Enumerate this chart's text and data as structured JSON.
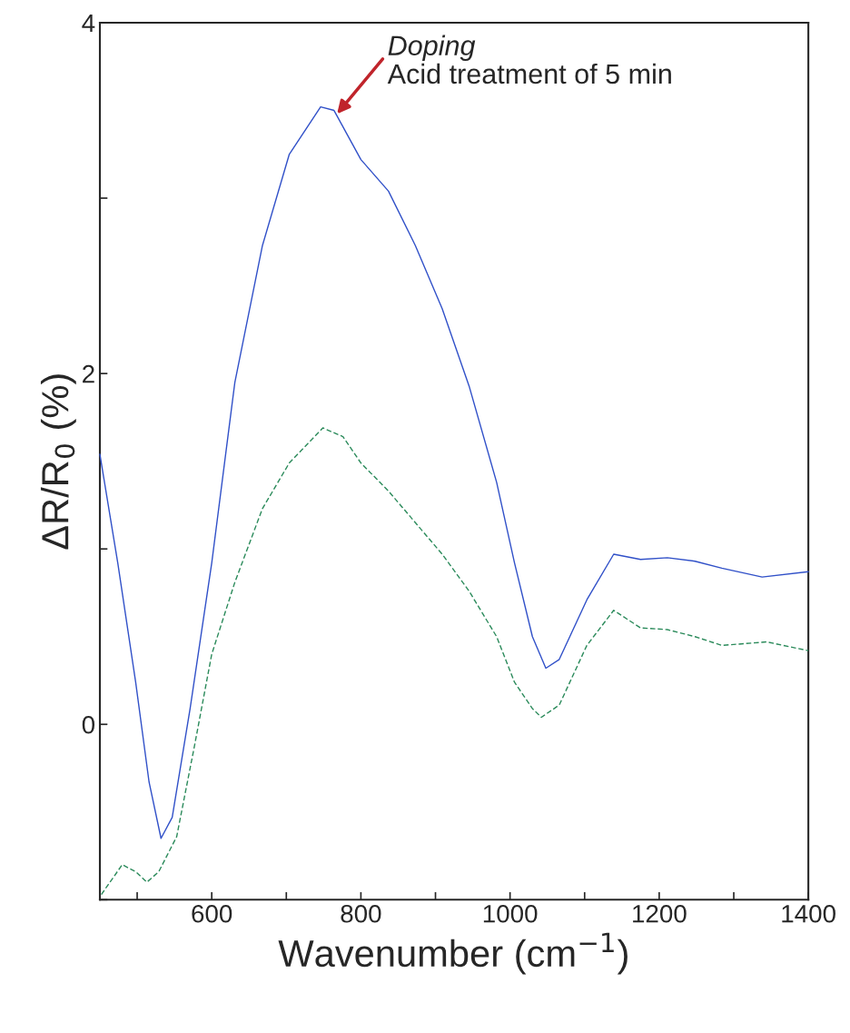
{
  "chart_data": {
    "type": "line",
    "xlabel": "Wavenumber (cm$^{−1}$)",
    "ylabel": "ΔR/R$_{0}$ (%)",
    "xlim": [
      450,
      1400
    ],
    "ylim": [
      -1,
      4
    ],
    "xticks": [
      {
        "value": 500,
        "label": null
      },
      600,
      {
        "value": 700,
        "label": null
      },
      800,
      {
        "value": 900,
        "label": null
      },
      1000,
      {
        "value": 1100,
        "label": null
      },
      1200,
      {
        "value": 1300,
        "label": null
      },
      1400
    ],
    "yticks": [
      {
        "value": -1,
        "label": null
      },
      0,
      {
        "value": 1,
        "label": null
      },
      2,
      {
        "value": 3,
        "label": null
      },
      4
    ],
    "grid": false,
    "legend": false,
    "series": [
      {
        "color": "#3050c8",
        "line_style": "solid",
        "x": [
          450,
          474,
          498,
          516,
          532,
          547,
          571,
          600,
          631,
          668,
          704,
          746,
          764,
          800,
          837,
          873,
          909,
          945,
          982,
          1006,
          1030,
          1048,
          1066,
          1103,
          1139,
          1175,
          1211,
          1248,
          1284,
          1338,
          1400
        ],
        "values": [
          1.54,
          0.92,
          0.24,
          -0.33,
          -0.65,
          -0.53,
          0.09,
          0.92,
          1.95,
          2.73,
          3.25,
          3.52,
          3.5,
          3.22,
          3.04,
          2.73,
          2.37,
          1.93,
          1.38,
          0.92,
          0.5,
          0.32,
          0.37,
          0.71,
          0.97,
          0.94,
          0.95,
          0.93,
          0.89,
          0.84,
          0.87
        ]
      },
      {
        "color": "#2a8a5a",
        "line_style": "dashed",
        "x": [
          452,
          480,
          498,
          513,
          529,
          553,
          577,
          600,
          631,
          668,
          704,
          749,
          776,
          800,
          837,
          873,
          909,
          945,
          982,
          1006,
          1030,
          1042,
          1066,
          1103,
          1139,
          1175,
          1211,
          1248,
          1284,
          1344,
          1400
        ],
        "values": [
          -0.97,
          -0.8,
          -0.84,
          -0.9,
          -0.84,
          -0.64,
          -0.12,
          0.4,
          0.81,
          1.23,
          1.49,
          1.69,
          1.64,
          1.49,
          1.33,
          1.15,
          0.97,
          0.76,
          0.5,
          0.24,
          0.09,
          0.04,
          0.11,
          0.45,
          0.65,
          0.55,
          0.54,
          0.5,
          0.45,
          0.47,
          0.42
        ]
      }
    ],
    "annotations": [
      {
        "text": "Doping",
        "x": 768,
        "y": 3.48
      },
      "Acid treatment of 5 min"
    ]
  }
}
